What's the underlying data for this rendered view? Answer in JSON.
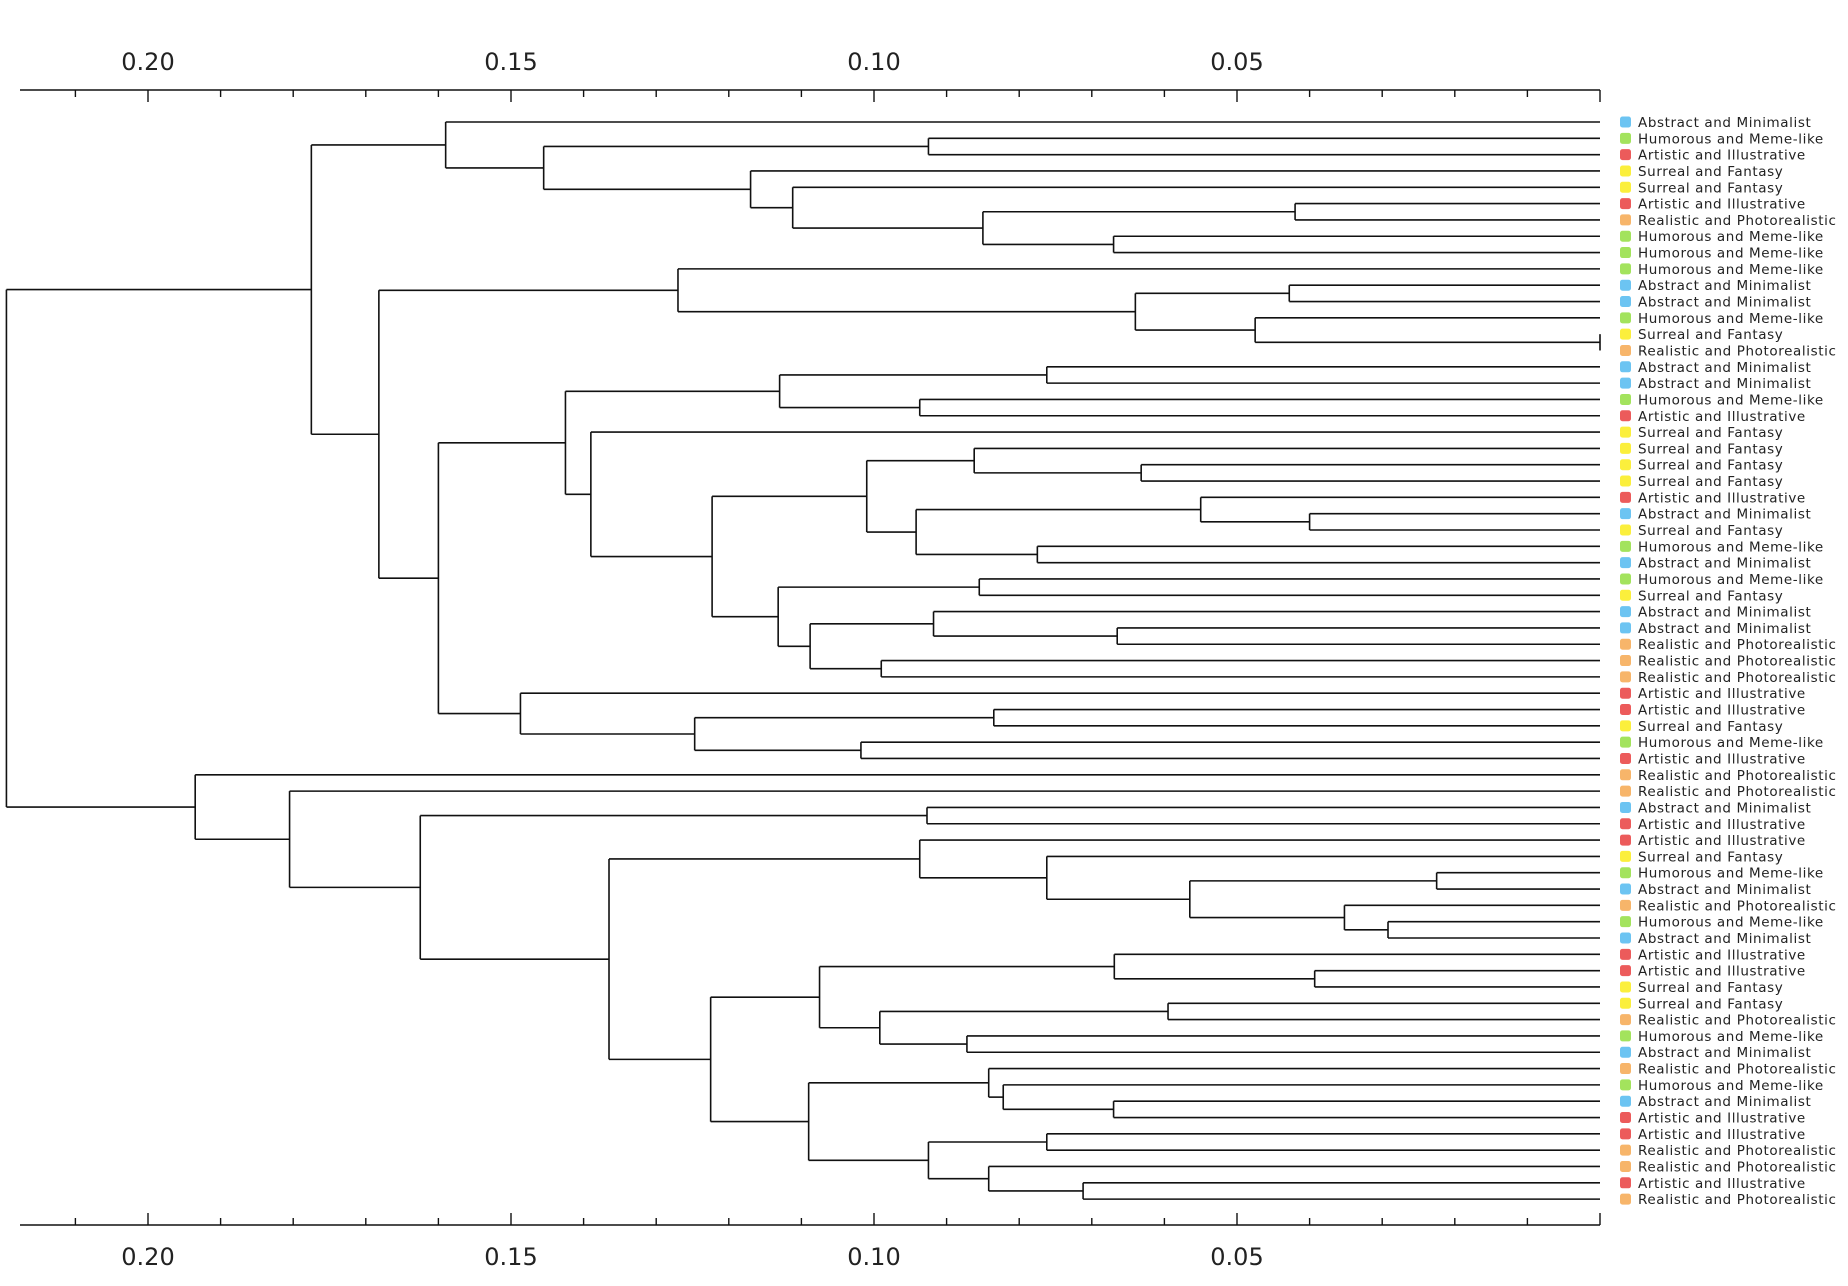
{
  "chart_data": {
    "type": "dendrogram",
    "orientation": "left",
    "xlim": [
      0.22,
      0.0
    ],
    "axes": [
      "top",
      "bottom"
    ],
    "major_ticks": [
      0.2,
      0.15,
      0.1,
      0.05
    ],
    "major_tick_labels": [
      "0.20",
      "0.15",
      "0.10",
      "0.05"
    ],
    "minor_tick_step": 0.01,
    "grid": false,
    "categories": {
      "Abstract and Minimalist": "#6cc4f2",
      "Humorous and Meme-like": "#a3e35d",
      "Artistic and Illustrative": "#ec5b5b",
      "Surreal and Fantasy": "#fbef3c",
      "Realistic and Photorealistic": "#f7b56a"
    },
    "leaves": [
      "Abstract and Minimalist",
      "Humorous and Meme-like",
      "Artistic and Illustrative",
      "Surreal and Fantasy",
      "Surreal and Fantasy",
      "Artistic and Illustrative",
      "Realistic and Photorealistic",
      "Humorous and Meme-like",
      "Humorous and Meme-like",
      "Humorous and Meme-like",
      "Abstract and Minimalist",
      "Abstract and Minimalist",
      "Humorous and Meme-like",
      "Surreal and Fantasy",
      "Realistic and Photorealistic",
      "Abstract and Minimalist",
      "Abstract and Minimalist",
      "Humorous and Meme-like",
      "Artistic and Illustrative",
      "Surreal and Fantasy",
      "Surreal and Fantasy",
      "Surreal and Fantasy",
      "Surreal and Fantasy",
      "Artistic and Illustrative",
      "Abstract and Minimalist",
      "Surreal and Fantasy",
      "Humorous and Meme-like",
      "Abstract and Minimalist",
      "Humorous and Meme-like",
      "Surreal and Fantasy",
      "Abstract and Minimalist",
      "Abstract and Minimalist",
      "Realistic and Photorealistic",
      "Realistic and Photorealistic",
      "Realistic and Photorealistic",
      "Artistic and Illustrative",
      "Artistic and Illustrative",
      "Surreal and Fantasy",
      "Humorous and Meme-like",
      "Artistic and Illustrative",
      "Realistic and Photorealistic",
      "Realistic and Photorealistic",
      "Abstract and Minimalist",
      "Artistic and Illustrative",
      "Artistic and Illustrative",
      "Surreal and Fantasy",
      "Humorous and Meme-like",
      "Abstract and Minimalist",
      "Realistic and Photorealistic",
      "Humorous and Meme-like",
      "Abstract and Minimalist",
      "Artistic and Illustrative",
      "Artistic and Illustrative",
      "Surreal and Fantasy",
      "Surreal and Fantasy",
      "Realistic and Photorealistic",
      "Humorous and Meme-like",
      "Abstract and Minimalist",
      "Realistic and Photorealistic",
      "Humorous and Meme-like",
      "Abstract and Minimalist",
      "Artistic and Illustrative",
      "Artistic and Illustrative",
      "Realistic and Photorealistic",
      "Realistic and Photorealistic",
      "Artistic and Illustrative",
      "Realistic and Photorealistic"
    ],
    "tree": [
      0.2195,
      [
        0.1775,
        [
          0.159,
          "L0",
          [
            0.1455,
            [
              0.0925,
              "L1",
              "L2"
            ],
            [
              0.117,
              "L3",
              [
                0.1112,
                "L4",
                [
                  0.085,
                  [
                    0.042,
                    "L5",
                    "L6"
                  ],
                  [
                    0.067,
                    "L7",
                    "L8"
                  ]
                ]
              ]
            ]
          ]
        ],
        [
          0.1682,
          [
            0.127,
            "L9",
            [
              0.064,
              [
                0.0428,
                "L10",
                "L11"
              ],
              [
                0.0475,
                "L12",
                [
                  0.0,
                  "L13",
                  "L14"
                ]
              ]
            ]
          ],
          [
            0.16,
            [
              0.1425,
              [
                0.113,
                [
                  0.0762,
                  "L15",
                  "L16"
                ],
                [
                  0.0937,
                  "L17",
                  "L18"
                ]
              ],
              [
                0.139,
                "L19",
                [
                  0.1223,
                  [
                    0.101,
                    [
                      0.0862,
                      "L20",
                      [
                        0.0632,
                        "L21",
                        "L22"
                      ]
                    ],
                    [
                      0.0942,
                      [
                        0.055,
                        "L23",
                        [
                          0.04,
                          "L24",
                          "L25"
                        ]
                      ],
                      [
                        0.0775,
                        "L26",
                        "L27"
                      ]
                    ]
                  ],
                  [
                    0.1132,
                    [
                      0.0855,
                      "L28",
                      "L29"
                    ],
                    [
                      0.1088,
                      [
                        0.0918,
                        "L30",
                        [
                          0.0665,
                          "L31",
                          "L32"
                        ]
                      ],
                      [
                        0.099,
                        "L33",
                        "L34"
                      ]
                    ]
                  ]
                ]
              ]
            ],
            [
              0.1487,
              "L35",
              [
                0.1247,
                [
                  0.0835,
                  "L36",
                  "L37"
                ],
                [
                  0.1018,
                  "L38",
                  "L39"
                ]
              ]
            ]
          ]
        ]
      ],
      [
        0.1935,
        "L40",
        [
          0.1805,
          "L41",
          [
            0.1625,
            [
              0.0927,
              "L42",
              "L43"
            ],
            [
              0.1365,
              [
                0.0937,
                "L44",
                [
                  0.0762,
                  "L45",
                  [
                    0.0565,
                    [
                      0.0225,
                      "L46",
                      "L47"
                    ],
                    [
                      0.0352,
                      "L48",
                      [
                        0.0292,
                        "L49",
                        "L50"
                      ]
                    ]
                  ]
                ]
              ],
              [
                0.1225,
                [
                  0.1075,
                  [
                    0.0669,
                    "L51",
                    [
                      0.0393,
                      "L52",
                      "L53"
                    ]
                  ],
                  [
                    0.0992,
                    [
                      0.0595,
                      "L54",
                      "L55"
                    ],
                    [
                      0.0872,
                      "L56",
                      "L57"
                    ]
                  ]
                ],
                [
                  0.109,
                  [
                    0.0842,
                    "L58",
                    [
                      0.0822,
                      "L59",
                      [
                        0.067,
                        "L60",
                        "L61"
                      ]
                    ]
                  ],
                  [
                    0.0925,
                    [
                      0.0762,
                      "L62",
                      "L63"
                    ],
                    [
                      0.0842,
                      "L64",
                      [
                        0.0712,
                        "L65",
                        "L66"
                      ]
                    ]
                  ]
                ]
              ]
            ]
          ]
        ]
      ]
    ]
  }
}
